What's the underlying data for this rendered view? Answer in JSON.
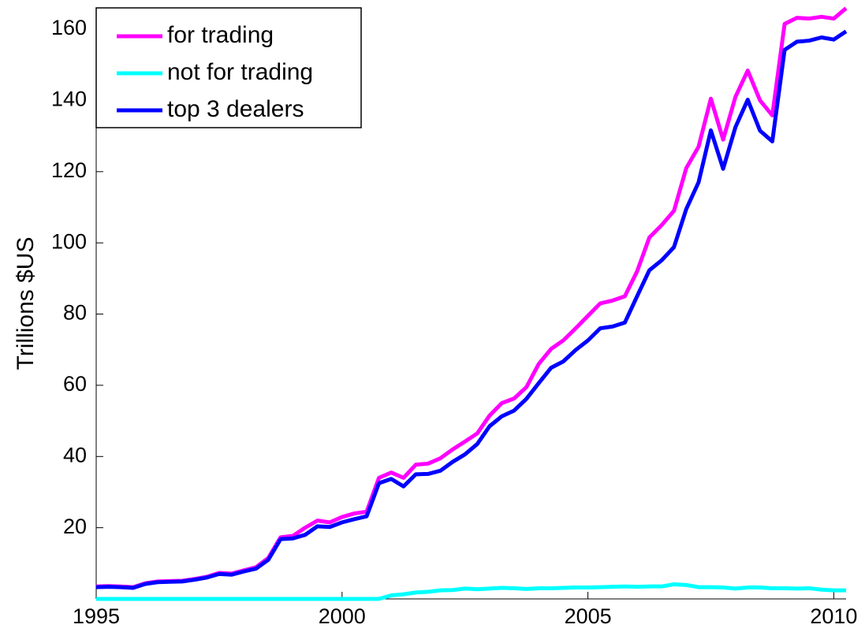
{
  "chart_data": {
    "type": "line",
    "ylabel": "Trillions $US",
    "x": [
      1995,
      1995.25,
      1995.5,
      1995.75,
      1996,
      1996.25,
      1996.5,
      1996.75,
      1997,
      1997.25,
      1997.5,
      1997.75,
      1998,
      1998.25,
      1998.5,
      1998.75,
      1999,
      1999.25,
      1999.5,
      1999.75,
      2000,
      2000.25,
      2000.5,
      2000.75,
      2001,
      2001.25,
      2001.5,
      2001.75,
      2002,
      2002.25,
      2002.5,
      2002.75,
      2003,
      2003.25,
      2003.5,
      2003.75,
      2004,
      2004.25,
      2004.5,
      2004.75,
      2005,
      2005.25,
      2005.5,
      2005.75,
      2006,
      2006.25,
      2006.5,
      2006.75,
      2007,
      2007.25,
      2007.5,
      2007.75,
      2008,
      2008.25,
      2008.5,
      2008.75,
      2009,
      2009.25,
      2009.5,
      2009.75,
      2010,
      2010.25
    ],
    "series": [
      {
        "name": "for trading",
        "color": "#ff00ff",
        "values": [
          3.5,
          3.6,
          3.5,
          3.3,
          4.4,
          4.9,
          5.0,
          5.1,
          5.6,
          6.2,
          7.3,
          7.1,
          8.0,
          8.9,
          11.5,
          17.3,
          17.7,
          20.0,
          22.0,
          21.5,
          23.0,
          24.0,
          24.5,
          34.0,
          35.5,
          34.0,
          37.7,
          38.0,
          39.5,
          42.0,
          44.2,
          46.5,
          51.5,
          55.0,
          56.3,
          59.5,
          66.0,
          70.2,
          72.6,
          76.0,
          79.5,
          83.0,
          83.8,
          85.0,
          92.0,
          101.5,
          105.0,
          109.0,
          121.0,
          127.0,
          140.5,
          129.0,
          141.0,
          148.4,
          140.0,
          135.8,
          161.5,
          163.2,
          163.0,
          163.5,
          163.0,
          165.9
        ]
      },
      {
        "name": "not for trading",
        "color": "#00ffff",
        "values": [
          0,
          0,
          0,
          0,
          0,
          0,
          0,
          0,
          0,
          0,
          0,
          0,
          0,
          0,
          0,
          0,
          0,
          0,
          0,
          0,
          0,
          0,
          0,
          0,
          1.0,
          1.3,
          1.8,
          2.0,
          2.4,
          2.5,
          2.9,
          2.7,
          2.9,
          3.1,
          3.0,
          2.8,
          3.0,
          3.0,
          3.1,
          3.2,
          3.2,
          3.3,
          3.4,
          3.5,
          3.4,
          3.5,
          3.5,
          4.1,
          3.9,
          3.3,
          3.3,
          3.2,
          2.9,
          3.2,
          3.2,
          3.0,
          3.0,
          2.9,
          3.0,
          2.6,
          2.4,
          2.4
        ]
      },
      {
        "name": "top 3 dealers",
        "color": "#0000ff",
        "values": [
          3.3,
          3.4,
          3.3,
          3.1,
          4.2,
          4.7,
          4.8,
          4.9,
          5.4,
          6.0,
          7.0,
          6.8,
          7.7,
          8.5,
          11.0,
          16.8,
          17.0,
          18.0,
          20.4,
          20.2,
          21.5,
          22.4,
          23.2,
          32.5,
          33.7,
          31.6,
          35.0,
          35.1,
          36.0,
          38.5,
          40.6,
          43.5,
          48.5,
          51.3,
          52.9,
          56.2,
          60.6,
          64.9,
          66.7,
          69.9,
          72.6,
          76.0,
          76.5,
          77.6,
          85.0,
          92.3,
          95.1,
          98.8,
          109.5,
          117.0,
          131.6,
          120.8,
          132.5,
          140.2,
          131.5,
          128.5,
          154.2,
          156.5,
          156.8,
          157.7,
          157.1,
          159.4
        ]
      }
    ],
    "xlim": [
      1995,
      2010.25
    ],
    "xticks": [
      1995,
      2000,
      2005,
      2010
    ],
    "ylim": [
      0,
      166
    ],
    "yticks": [
      20,
      40,
      60,
      80,
      100,
      120,
      140,
      160
    ],
    "legend": "upper left",
    "grid": false
  }
}
